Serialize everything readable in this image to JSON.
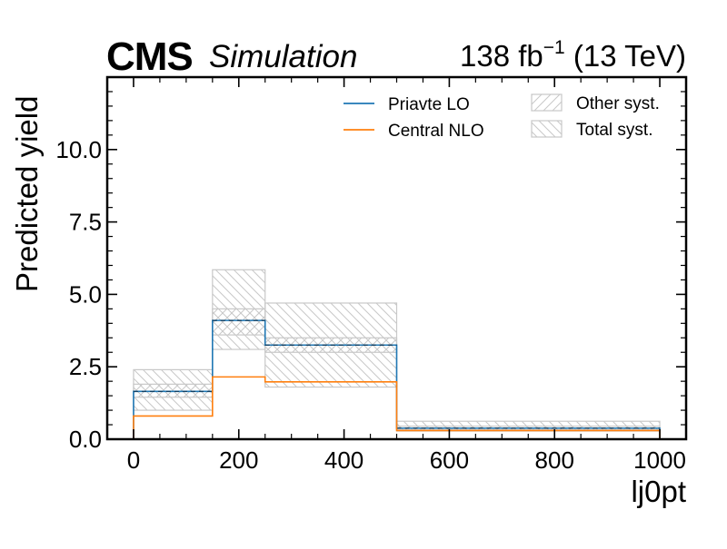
{
  "header": {
    "experiment": "CMS",
    "tag": "Simulation",
    "lumi_value": "138 fb",
    "lumi_exponent": "−1",
    "energy": "(13 TeV)"
  },
  "colors": {
    "private_lo": "#1f77b4",
    "central_nlo": "#ff7f0e",
    "syst_hatch": "#c8c8c8",
    "frame": "#000000"
  },
  "chart_data": {
    "type": "histogram-step",
    "xlabel": "lj0pt",
    "ylabel": "Predicted yield",
    "xlim": [
      -50,
      1050
    ],
    "ylim": [
      0,
      12.5
    ],
    "xticks": [
      0,
      200,
      400,
      600,
      800,
      1000
    ],
    "xtick_labels": [
      "0",
      "200",
      "400",
      "600",
      "800",
      "1000"
    ],
    "yticks": [
      0.0,
      2.5,
      5.0,
      7.5,
      10.0
    ],
    "ytick_labels": [
      "0.0",
      "2.5",
      "5.0",
      "7.5",
      "10.0"
    ],
    "bin_edges": [
      0,
      150,
      250,
      500,
      1000
    ],
    "series": [
      {
        "name": "Priavte LO",
        "style": "solid step with dashed centre",
        "values": [
          1.65,
          4.1,
          3.25,
          0.38
        ]
      },
      {
        "name": "Central NLO",
        "style": "solid step",
        "values": [
          0.8,
          2.15,
          1.98,
          0.3
        ]
      }
    ],
    "bands": [
      {
        "name": "Other syst.",
        "hatch": "////",
        "low": [
          1.45,
          3.6,
          3.0,
          0.32
        ],
        "high": [
          1.9,
          4.5,
          3.5,
          0.45
        ]
      },
      {
        "name": "Total syst.",
        "hatch": "\\\\\\\\",
        "low": [
          1.0,
          3.1,
          1.8,
          0.28
        ],
        "high": [
          2.4,
          5.85,
          4.7,
          0.62
        ]
      }
    ],
    "legend": {
      "placement": "upper-right, two columns",
      "entries": [
        "Priavte LO",
        "Central NLO",
        "Other syst.",
        "Total syst."
      ]
    },
    "grid": false
  }
}
